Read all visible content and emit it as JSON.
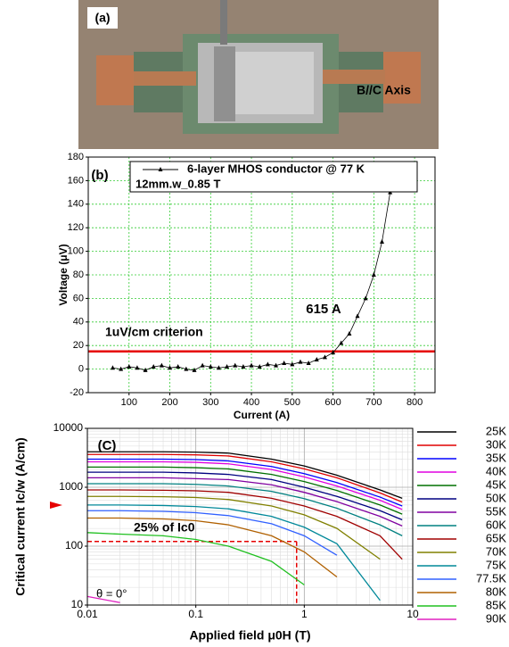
{
  "photo": {
    "label": "(a)"
  },
  "chart_data": [
    {
      "type": "line",
      "panel_label": "(b)",
      "xlabel": "Current (A)",
      "ylabel": "Voltage (μV)",
      "xlim": [
        0,
        850
      ],
      "xticks": [
        100,
        200,
        300,
        400,
        500,
        600,
        700,
        800
      ],
      "ylim": [
        -20,
        180
      ],
      "yticks": [
        -20,
        0,
        20,
        40,
        60,
        80,
        100,
        120,
        140,
        160,
        180
      ],
      "grid": true,
      "grid_color": "#33cc33",
      "x": [
        60,
        80,
        100,
        120,
        140,
        160,
        180,
        200,
        220,
        240,
        260,
        280,
        300,
        320,
        340,
        360,
        380,
        400,
        420,
        440,
        460,
        480,
        500,
        520,
        540,
        560,
        580,
        600,
        620,
        640,
        660,
        680,
        700,
        720,
        740
      ],
      "series": [
        {
          "name": "6-layer MHOS conductor @ 77 K",
          "color": "#000000",
          "values": [
            1,
            0,
            2,
            1,
            -1,
            2,
            3,
            1,
            2,
            0,
            -1,
            3,
            2,
            1,
            2,
            3,
            2,
            3,
            2,
            4,
            3,
            5,
            4,
            6,
            5,
            8,
            10,
            14,
            22,
            30,
            45,
            60,
            80,
            108,
            150
          ]
        }
      ],
      "legend_note": "12mm.w_0.85 T",
      "hline": {
        "value": 15,
        "color": "#e60000"
      },
      "annotations": [
        "B//C Axis",
        "615 A",
        "1uV/cm criterion"
      ]
    },
    {
      "type": "line",
      "panel_label": "(C)",
      "xlabel": "Applied field μ0H (T)",
      "ylabel": "Critical current Ic/w (A/cm)",
      "log_x": true,
      "log_y": true,
      "grid": true,
      "xlim": [
        0.01,
        10
      ],
      "xticks": [
        0.01,
        0.1,
        1,
        10
      ],
      "ylim": [
        10,
        10000
      ],
      "yticks": [
        10,
        100,
        1000,
        10000
      ],
      "x": [
        0.01,
        0.02,
        0.05,
        0.1,
        0.2,
        0.5,
        1,
        2,
        5,
        8
      ],
      "series": [
        {
          "name": "25K",
          "color": "#000000",
          "values": [
            4000,
            4000,
            4000,
            3950,
            3800,
            3000,
            2300,
            1600,
            900,
            650
          ]
        },
        {
          "name": "30K",
          "color": "#e00000",
          "values": [
            3600,
            3600,
            3600,
            3550,
            3400,
            2700,
            2050,
            1450,
            800,
            560
          ]
        },
        {
          "name": "35K",
          "color": "#0000ff",
          "values": [
            3000,
            3000,
            3000,
            2950,
            2800,
            2250,
            1700,
            1200,
            680,
            480
          ]
        },
        {
          "name": "40K",
          "color": "#e000e0",
          "values": [
            2700,
            2700,
            2700,
            2650,
            2500,
            2000,
            1500,
            1050,
            600,
            420
          ]
        },
        {
          "name": "45K",
          "color": "#007000",
          "values": [
            2200,
            2200,
            2200,
            2150,
            2050,
            1650,
            1250,
            880,
            500,
            350
          ]
        },
        {
          "name": "50K",
          "color": "#000080",
          "values": [
            1800,
            1800,
            1800,
            1750,
            1650,
            1350,
            1000,
            700,
            400,
            280
          ]
        },
        {
          "name": "55K",
          "color": "#8000a0",
          "values": [
            1450,
            1450,
            1450,
            1400,
            1350,
            1100,
            820,
            570,
            320,
            220
          ]
        },
        {
          "name": "60K",
          "color": "#008080",
          "values": [
            1150,
            1150,
            1150,
            1120,
            1050,
            850,
            640,
            440,
            230,
            150
          ]
        },
        {
          "name": "65K",
          "color": "#a00000",
          "values": [
            900,
            900,
            890,
            870,
            820,
            650,
            480,
            320,
            150,
            60
          ]
        },
        {
          "name": "70K",
          "color": "#808000",
          "values": [
            700,
            700,
            690,
            670,
            620,
            480,
            340,
            200,
            60,
            null
          ]
        },
        {
          "name": "75K",
          "color": "#008899",
          "values": [
            500,
            500,
            490,
            470,
            430,
            320,
            210,
            110,
            12,
            null
          ]
        },
        {
          "name": "77.5K",
          "color": "#3060ff",
          "values": [
            400,
            400,
            390,
            370,
            330,
            240,
            150,
            70,
            null,
            null
          ]
        },
        {
          "name": "80K",
          "color": "#b06000",
          "values": [
            300,
            300,
            290,
            270,
            230,
            150,
            80,
            30,
            null,
            null
          ]
        },
        {
          "name": "85K",
          "color": "#20c020",
          "values": [
            170,
            160,
            150,
            130,
            100,
            55,
            22,
            null,
            null,
            null
          ]
        },
        {
          "name": "90K",
          "color": "#e020c0",
          "values": [
            14,
            11,
            null,
            null,
            null,
            null,
            null,
            null,
            null,
            null
          ]
        }
      ],
      "guide": {
        "x": 0.85,
        "y": 120,
        "color": "#e60000"
      },
      "annotations": [
        "25% of Ic0",
        "θ = 0°"
      ]
    }
  ]
}
